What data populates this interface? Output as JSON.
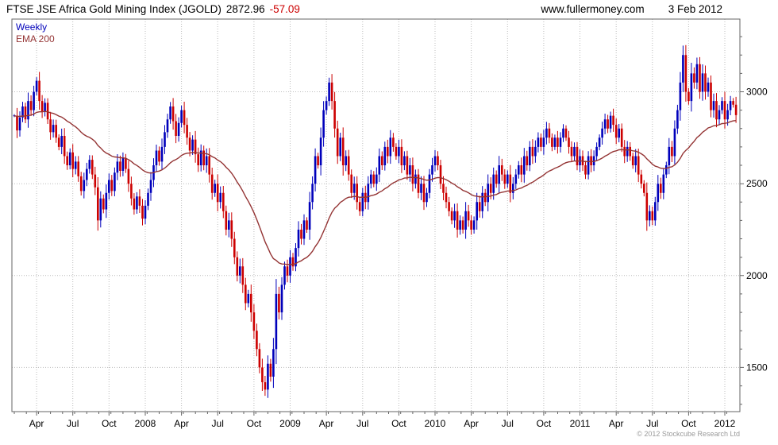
{
  "header": {
    "title": "FTSE JSE Africa Gold Mining Index (JGOLD)",
    "last_price": "2872.96",
    "change": "-57.09",
    "site": "www.fullermoney.com",
    "date": "3 Feb 2012"
  },
  "legend": {
    "series1": "Weekly",
    "series2": "EMA 200"
  },
  "footer": {
    "copyright": "© 2012 Stockcube Research Ltd"
  },
  "chart_data": {
    "type": "candlestick",
    "title": "FTSE JSE Africa Gold Mining Index (JGOLD)",
    "frequency": "Weekly",
    "overlay": "EMA 200",
    "last": 2872.96,
    "change": -57.09,
    "x_axis": {
      "start": "Feb 2007",
      "end": "Feb 2012",
      "tick_labels": [
        "Apr",
        "Jul",
        "Oct",
        "2008",
        "Apr",
        "Jul",
        "Oct",
        "2009",
        "Apr",
        "Jul",
        "Oct",
        "2010",
        "Apr",
        "Jul",
        "Oct",
        "2011",
        "Apr",
        "Jul",
        "Oct",
        "2012"
      ],
      "tick_week_indices": [
        8,
        21,
        34,
        47,
        60,
        73,
        86,
        99,
        112,
        125,
        138,
        151,
        164,
        177,
        190,
        203,
        216,
        229,
        242,
        255
      ]
    },
    "y_axis": {
      "tick_values": [
        1500,
        2000,
        2500,
        3000
      ],
      "tick_labels": [
        "1500",
        "2000",
        "2500",
        "3000"
      ],
      "ylim": [
        1260,
        3395
      ],
      "grid": true
    },
    "legend_position": "top-left",
    "colors": {
      "up": "#0000bb",
      "down": "#cc0000",
      "ema": "#943434",
      "grid": "#bcbcbc",
      "border": "#666666",
      "text": "#000000",
      "change_negative": "#cc0000",
      "copyright": "#9a9a9a"
    },
    "weekly_closes": [
      2870,
      2790,
      2860,
      2920,
      2850,
      2950,
      2900,
      3000,
      3060,
      2950,
      2890,
      2940,
      2850,
      2780,
      2820,
      2750,
      2700,
      2760,
      2650,
      2600,
      2670,
      2580,
      2620,
      2540,
      2460,
      2520,
      2580,
      2630,
      2550,
      2480,
      2300,
      2420,
      2360,
      2450,
      2520,
      2460,
      2560,
      2620,
      2570,
      2640,
      2580,
      2500,
      2420,
      2360,
      2430,
      2380,
      2310,
      2380,
      2450,
      2520,
      2600,
      2680,
      2620,
      2700,
      2780,
      2850,
      2920,
      2840,
      2760,
      2830,
      2900,
      2820,
      2750,
      2680,
      2740,
      2660,
      2600,
      2680,
      2600,
      2650,
      2550,
      2450,
      2500,
      2400,
      2450,
      2350,
      2250,
      2300,
      2200,
      2100,
      2000,
      2050,
      1950,
      1850,
      1900,
      1800,
      1700,
      1600,
      1500,
      1420,
      1380,
      1520,
      1450,
      1600,
      1900,
      1800,
      1950,
      2050,
      2000,
      2100,
      2050,
      2150,
      2250,
      2200,
      2300,
      2250,
      2400,
      2500,
      2650,
      2600,
      2750,
      2900,
      2950,
      3050,
      2950,
      2800,
      2650,
      2750,
      2600,
      2650,
      2550,
      2450,
      2500,
      2400,
      2350,
      2450,
      2400,
      2500,
      2550,
      2500,
      2550,
      2650,
      2600,
      2700,
      2650,
      2750,
      2700,
      2650,
      2700,
      2600,
      2650,
      2550,
      2600,
      2500,
      2550,
      2450,
      2500,
      2400,
      2450,
      2550,
      2600,
      2650,
      2600,
      2500,
      2450,
      2400,
      2350,
      2300,
      2350,
      2250,
      2300,
      2250,
      2350,
      2300,
      2250,
      2300,
      2400,
      2350,
      2450,
      2400,
      2500,
      2450,
      2550,
      2500,
      2600,
      2550,
      2500,
      2550,
      2450,
      2500,
      2550,
      2600,
      2550,
      2650,
      2600,
      2700,
      2650,
      2700,
      2750,
      2700,
      2750,
      2800,
      2750,
      2700,
      2750,
      2700,
      2750,
      2800,
      2750,
      2700,
      2650,
      2700,
      2600,
      2650,
      2600,
      2550,
      2650,
      2600,
      2650,
      2700,
      2750,
      2800,
      2850,
      2800,
      2870,
      2820,
      2750,
      2800,
      2700,
      2650,
      2700,
      2650,
      2600,
      2650,
      2550,
      2500,
      2450,
      2300,
      2350,
      2300,
      2400,
      2500,
      2450,
      2550,
      2600,
      2700,
      2650,
      2800,
      2900,
      3050,
      3200,
      3000,
      2950,
      3100,
      3050,
      3150,
      3000,
      3100,
      3000,
      3050,
      2900,
      2950,
      2850,
      2900,
      2950,
      2850,
      2900,
      2950,
      2930.05,
      2872.96
    ]
  }
}
